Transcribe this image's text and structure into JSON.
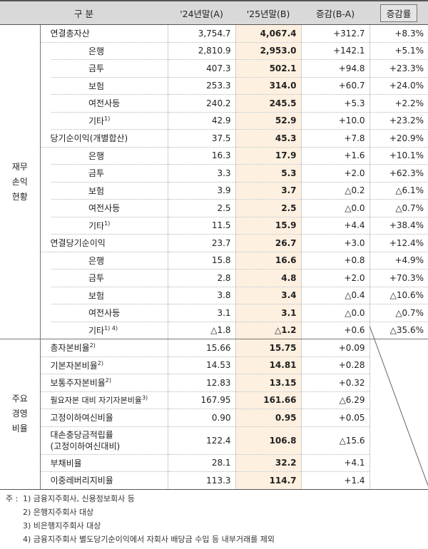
{
  "header": {
    "category": "구 분",
    "col_2024": "'24년말(A)",
    "col_2025": "'25년말(B)",
    "col_change": "증감(B-A)",
    "col_rate": "증감률"
  },
  "sections": {
    "financial": "재무 손익 현황",
    "ratios": "주요 경영 비율"
  },
  "rows": [
    {
      "label": "연결총자산",
      "sup": "",
      "a": "3,754.7",
      "b": "4,067.4",
      "chg": "+312.7",
      "rate": "+8.3%"
    },
    {
      "label": "은행",
      "sup": "",
      "a": "2,810.9",
      "b": "2,953.0",
      "chg": "+142.1",
      "rate": "+5.1%"
    },
    {
      "label": "금투",
      "sup": "",
      "a": "407.3",
      "b": "502.1",
      "chg": "+94.8",
      "rate": "+23.3%"
    },
    {
      "label": "보험",
      "sup": "",
      "a": "253.3",
      "b": "314.0",
      "chg": "+60.7",
      "rate": "+24.0%"
    },
    {
      "label": "여전사등",
      "sup": "",
      "a": "240.2",
      "b": "245.5",
      "chg": "+5.3",
      "rate": "+2.2%"
    },
    {
      "label": "기타",
      "sup": "1)",
      "a": "42.9",
      "b": "52.9",
      "chg": "+10.0",
      "rate": "+23.2%"
    },
    {
      "label": "당기순이익(개별합산)",
      "sup": "",
      "a": "37.5",
      "b": "45.3",
      "chg": "+7.8",
      "rate": "+20.9%"
    },
    {
      "label": "은행",
      "sup": "",
      "a": "16.3",
      "b": "17.9",
      "chg": "+1.6",
      "rate": "+10.1%"
    },
    {
      "label": "금투",
      "sup": "",
      "a": "3.3",
      "b": "5.3",
      "chg": "+2.0",
      "rate": "+62.3%"
    },
    {
      "label": "보험",
      "sup": "",
      "a": "3.9",
      "b": "3.7",
      "chg": "△0.2",
      "rate": "△6.1%"
    },
    {
      "label": "여전사등",
      "sup": "",
      "a": "2.5",
      "b": "2.5",
      "chg": "△0.0",
      "rate": "△0.7%"
    },
    {
      "label": "기타",
      "sup": "1)",
      "a": "11.5",
      "b": "15.9",
      "chg": "+4.4",
      "rate": "+38.4%"
    },
    {
      "label": "연결당기순이익",
      "sup": "",
      "a": "23.7",
      "b": "26.7",
      "chg": "+3.0",
      "rate": "+12.4%"
    },
    {
      "label": "은행",
      "sup": "",
      "a": "15.8",
      "b": "16.6",
      "chg": "+0.8",
      "rate": "+4.9%"
    },
    {
      "label": "금투",
      "sup": "",
      "a": "2.8",
      "b": "4.8",
      "chg": "+2.0",
      "rate": "+70.3%"
    },
    {
      "label": "보험",
      "sup": "",
      "a": "3.8",
      "b": "3.4",
      "chg": "△0.4",
      "rate": "△10.6%"
    },
    {
      "label": "여전사등",
      "sup": "",
      "a": "3.1",
      "b": "3.1",
      "chg": "△0.0",
      "rate": "△0.7%"
    },
    {
      "label": "기타",
      "sup": "1) 4)",
      "a": "△1.8",
      "b": "△1.2",
      "chg": "+0.6",
      "rate": "△35.6%"
    },
    {
      "label": "총자본비율",
      "sup": "2)",
      "a": "15.66",
      "b": "15.75",
      "chg": "+0.09"
    },
    {
      "label": "기본자본비율",
      "sup": "2)",
      "a": "14.53",
      "b": "14.81",
      "chg": "+0.28"
    },
    {
      "label": "보통주자본비율",
      "sup": "2)",
      "a": "12.83",
      "b": "13.15",
      "chg": "+0.32"
    },
    {
      "label": "필요자본 대비 자기자본비율",
      "sup": "3)",
      "a": "167.95",
      "b": "161.66",
      "chg": "△6.29"
    },
    {
      "label": "고정이하여신비율",
      "sup": "",
      "a": "0.90",
      "b": "0.95",
      "chg": "+0.05"
    },
    {
      "label": "대손충당금적립률\n(고정이하여신대비)",
      "sup": "",
      "a": "122.4",
      "b": "106.8",
      "chg": "△15.6"
    },
    {
      "label": "부채비율",
      "sup": "",
      "a": "28.1",
      "b": "32.2",
      "chg": "+4.1"
    },
    {
      "label": "이중레버리지비율",
      "sup": "",
      "a": "113.3",
      "b": "114.7",
      "chg": "+1.4"
    }
  ],
  "notes": {
    "prefix": "주 :",
    "items": [
      "1) 금융지주회사, 신용정보회사 등",
      "2) 은행지주회사 대상",
      "3) 비은행지주회사 대상",
      "4) 금융지주회사 별도당기순이익에서 자회사 배당금 수입 등 내부거래를 제외"
    ]
  }
}
